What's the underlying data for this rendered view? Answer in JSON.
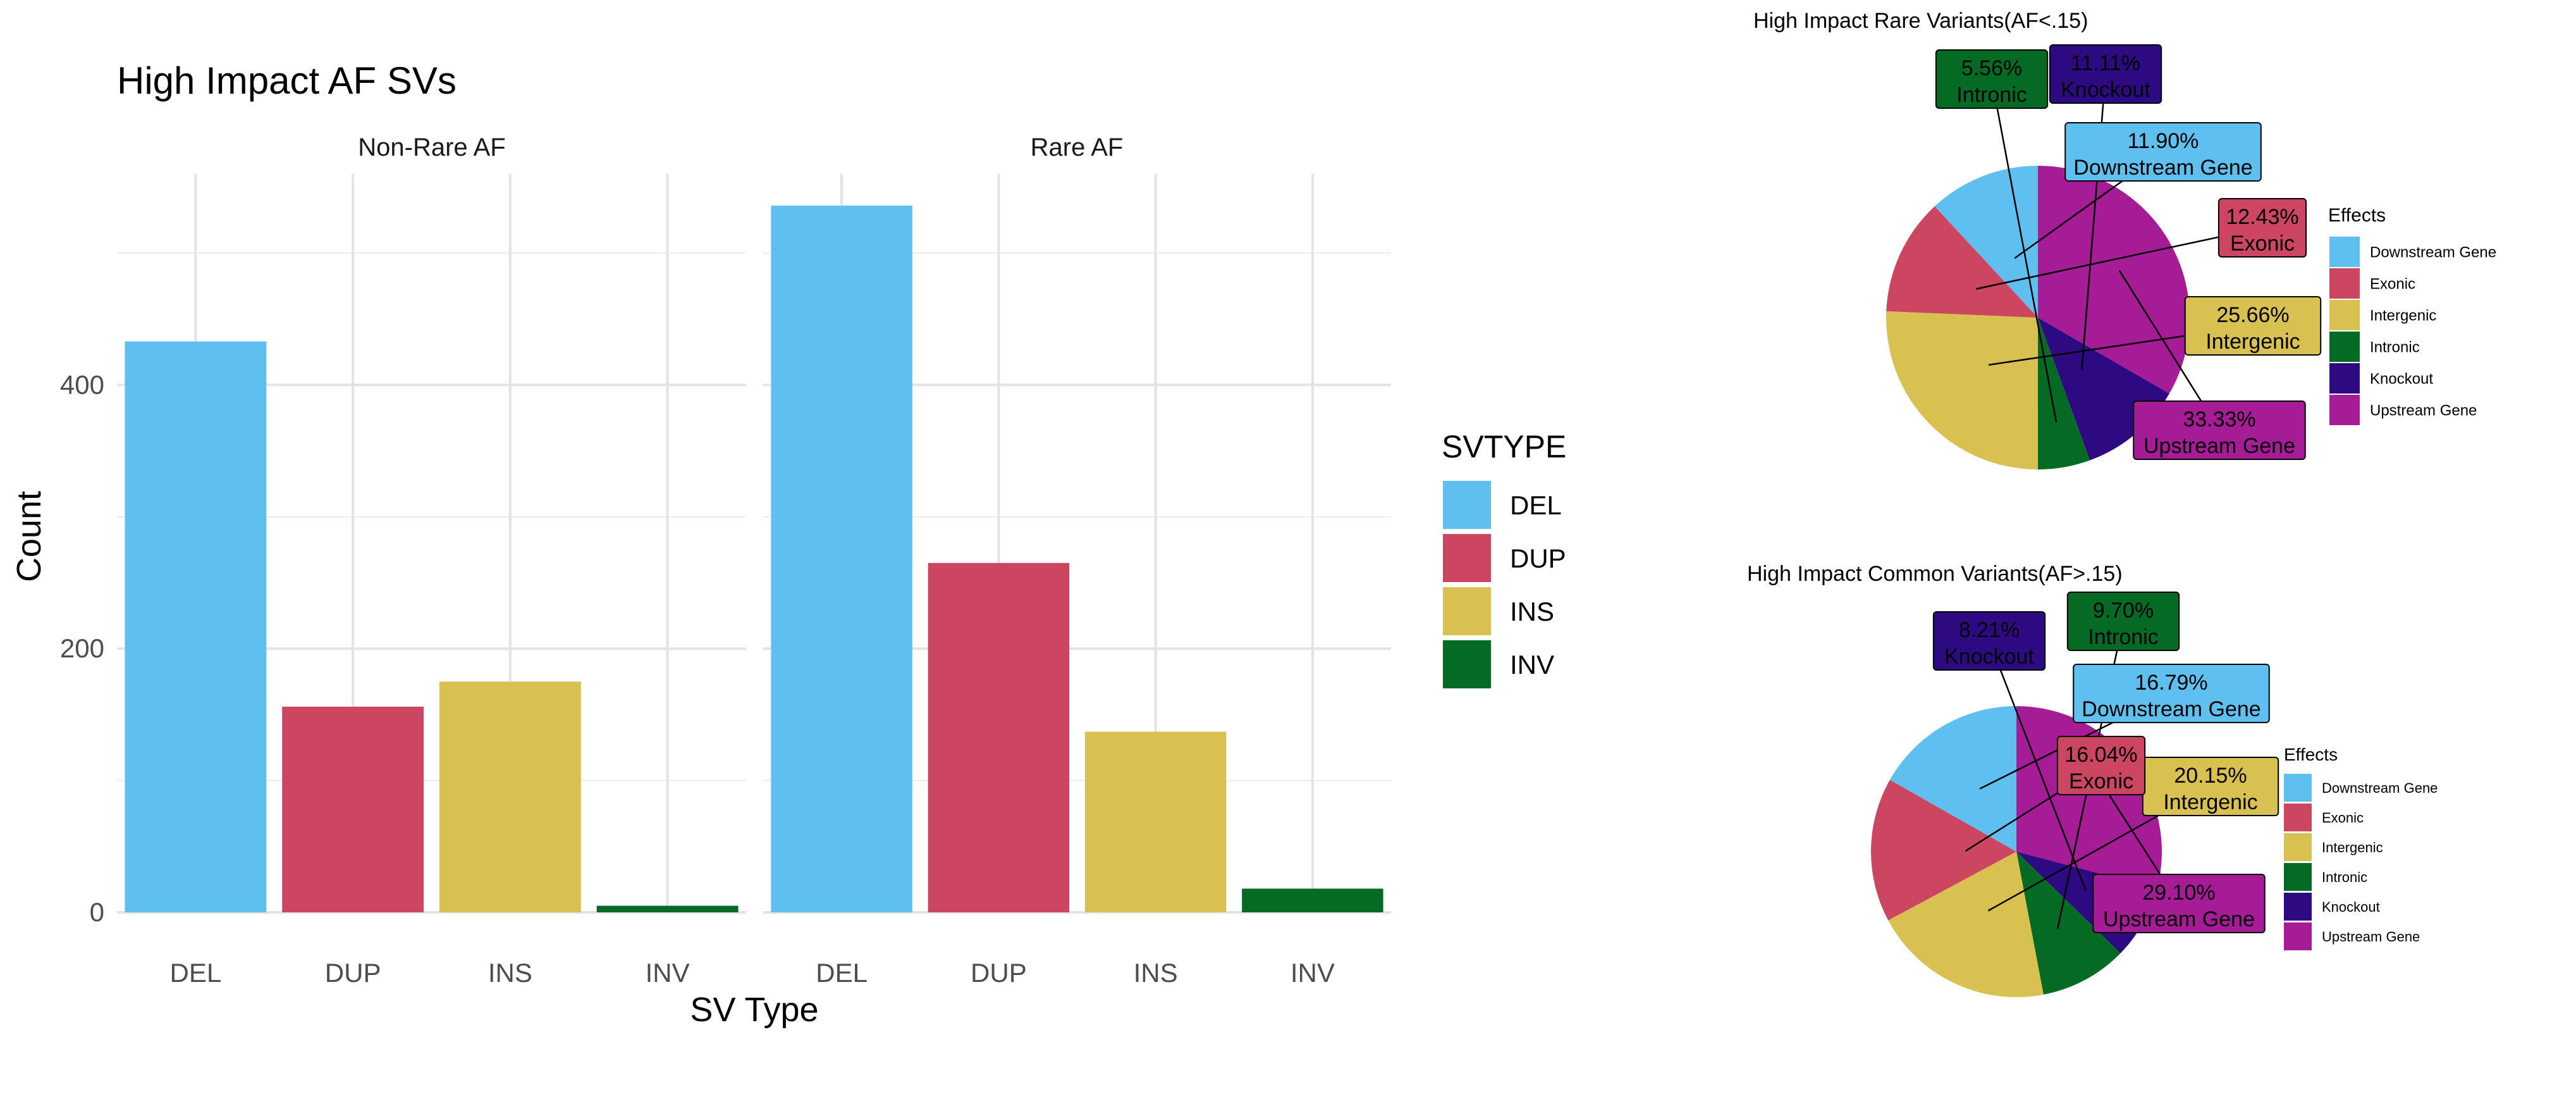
{
  "chart_data": [
    {
      "type": "bar",
      "title": "High Impact AF SVs",
      "xlabel": "SV Type",
      "ylabel": "Count",
      "ylim": [
        0,
        560
      ],
      "yticks": [
        0,
        200,
        400
      ],
      "grid": true,
      "categories": [
        "DEL",
        "DUP",
        "INS",
        "INV"
      ],
      "facets": [
        {
          "name": "Non-Rare AF",
          "values": [
            433,
            156,
            175,
            5
          ]
        },
        {
          "name": "Rare AF",
          "values": [
            536,
            265,
            137,
            18
          ]
        }
      ],
      "legend": {
        "title": "SVTYPE",
        "placement": "right",
        "entries": [
          {
            "label": "DEL",
            "color": "#5FC0F0"
          },
          {
            "label": "DUP",
            "color": "#CC4561"
          },
          {
            "label": "INS",
            "color": "#D9C151"
          },
          {
            "label": "INV",
            "color": "#056B24"
          }
        ]
      }
    },
    {
      "type": "pie",
      "title": "High Impact Rare Variants(AF<.15)",
      "slices": [
        {
          "label": "Upstream Gene",
          "value": 33.33,
          "pct": "33.33%"
        },
        {
          "label": "Knockout",
          "value": 11.11,
          "pct": "11.11%"
        },
        {
          "label": "Intronic",
          "value": 5.56,
          "pct": "5.56%"
        },
        {
          "label": "Intergenic",
          "value": 25.66,
          "pct": "25.66%"
        },
        {
          "label": "Exonic",
          "value": 12.43,
          "pct": "12.43%"
        },
        {
          "label": "Downstream Gene",
          "value": 11.9,
          "pct": "11.90%"
        }
      ],
      "legend": {
        "title": "Effects",
        "placement": "right",
        "entries": [
          "Downstream Gene",
          "Exonic",
          "Intergenic",
          "Intronic",
          "Knockout",
          "Upstream Gene"
        ]
      }
    },
    {
      "type": "pie",
      "title": "High Impact Common Variants(AF>.15)",
      "slices": [
        {
          "label": "Upstream Gene",
          "value": 29.1,
          "pct": "29.10%"
        },
        {
          "label": "Knockout",
          "value": 8.21,
          "pct": "8.21%"
        },
        {
          "label": "Intronic",
          "value": 9.7,
          "pct": "9.70%"
        },
        {
          "label": "Intergenic",
          "value": 20.15,
          "pct": "20.15%"
        },
        {
          "label": "Exonic",
          "value": 16.04,
          "pct": "16.04%"
        },
        {
          "label": "Downstream Gene",
          "value": 16.79,
          "pct": "16.79%"
        }
      ],
      "legend": {
        "title": "Effects",
        "placement": "right",
        "entries": [
          "Downstream Gene",
          "Exonic",
          "Intergenic",
          "Intronic",
          "Knockout",
          "Upstream Gene"
        ]
      }
    }
  ],
  "colors": {
    "Downstream Gene": "#5FC0F0",
    "Exonic": "#CC4561",
    "Intergenic": "#D9C151",
    "Intronic": "#056B24",
    "Knockout": "#2E0A82",
    "Upstream Gene": "#A61C96"
  }
}
